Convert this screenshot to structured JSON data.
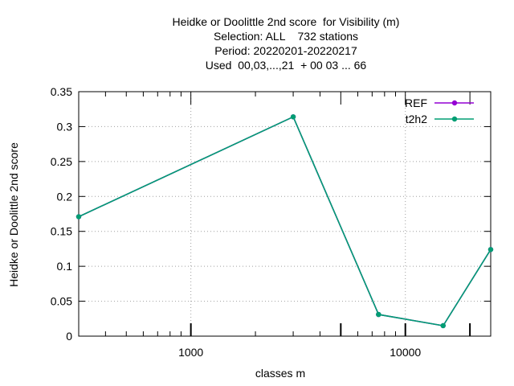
{
  "chart_data": {
    "type": "line",
    "title_lines": [
      "Heidke or Doolittle 2nd score  for Visibility (m)",
      "Selection: ALL    732 stations",
      "Period: 20220201-20220217",
      "Used  00,03,...,21  + 00 03 ... 66"
    ],
    "xlabel": "classes m",
    "ylabel": "Heidke or Doolittle 2nd score",
    "x_scale": "log",
    "xlim": [
      300,
      25000
    ],
    "ylim": [
      0,
      0.35
    ],
    "x_ticks": [
      1000,
      10000
    ],
    "x_tick_labels": [
      "1000",
      "10000"
    ],
    "y_ticks": [
      0,
      0.05,
      0.1,
      0.15,
      0.2,
      0.25,
      0.3,
      0.35
    ],
    "y_tick_labels": [
      "0",
      "0.05",
      "0.1",
      "0.15",
      "0.2",
      "0.25",
      "0.3",
      "0.35"
    ],
    "grid": true,
    "legend_position": "top-right",
    "x": [
      300,
      3000,
      7500,
      15000,
      25000
    ],
    "series": [
      {
        "name": "REF",
        "color": "#9400d3",
        "values": [
          0.171,
          0.314,
          0.031,
          0.015,
          0.124
        ]
      },
      {
        "name": "t2h2",
        "color": "#009e73",
        "values": [
          0.171,
          0.314,
          0.031,
          0.015,
          0.124
        ]
      }
    ]
  }
}
